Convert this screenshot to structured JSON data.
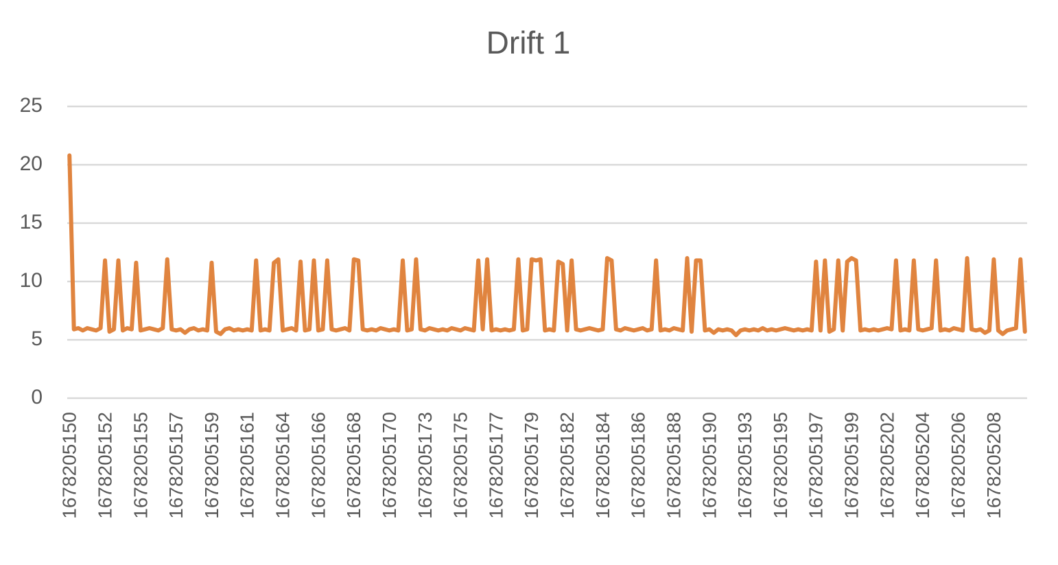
{
  "chart_data": {
    "type": "line",
    "title": "Drift 1",
    "categories": [
      "1678205150",
      null,
      null,
      null,
      null,
      null,
      null,
      null,
      "1678205152",
      null,
      null,
      null,
      null,
      null,
      null,
      null,
      "1678205155",
      null,
      null,
      null,
      null,
      null,
      null,
      null,
      "1678205157",
      null,
      null,
      null,
      null,
      null,
      null,
      null,
      "1678205159",
      null,
      null,
      null,
      null,
      null,
      null,
      null,
      "1678205161",
      null,
      null,
      null,
      null,
      null,
      null,
      null,
      "1678205164",
      null,
      null,
      null,
      null,
      null,
      null,
      null,
      "1678205166",
      null,
      null,
      null,
      null,
      null,
      null,
      null,
      "1678205168",
      null,
      null,
      null,
      null,
      null,
      null,
      null,
      "1678205170",
      null,
      null,
      null,
      null,
      null,
      null,
      null,
      "1678205173",
      null,
      null,
      null,
      null,
      null,
      null,
      null,
      "1678205175",
      null,
      null,
      null,
      null,
      null,
      null,
      null,
      "1678205177",
      null,
      null,
      null,
      null,
      null,
      null,
      null,
      "1678205179",
      null,
      null,
      null,
      null,
      null,
      null,
      null,
      "1678205182",
      null,
      null,
      null,
      null,
      null,
      null,
      null,
      "1678205184",
      null,
      null,
      null,
      null,
      null,
      null,
      null,
      "1678205186",
      null,
      null,
      null,
      null,
      null,
      null,
      null,
      "1678205188",
      null,
      null,
      null,
      null,
      null,
      null,
      null,
      "1678205190",
      null,
      null,
      null,
      null,
      null,
      null,
      null,
      "1678205193",
      null,
      null,
      null,
      null,
      null,
      null,
      null,
      "1678205195",
      null,
      null,
      null,
      null,
      null,
      null,
      null,
      "1678205197",
      null,
      null,
      null,
      null,
      null,
      null,
      null,
      "1678205199",
      null,
      null,
      null,
      null,
      null,
      null,
      null,
      "1678205202",
      null,
      null,
      null,
      null,
      null,
      null,
      null,
      "1678205204",
      null,
      null,
      null,
      null,
      null,
      null,
      null,
      "1678205206",
      null,
      null,
      null,
      null,
      null,
      null,
      null,
      "1678205208",
      null,
      null,
      null,
      null,
      null,
      null,
      null
    ],
    "values": [
      20.8,
      5.9,
      6.0,
      5.8,
      6.0,
      5.9,
      5.8,
      6.0,
      11.8,
      5.7,
      5.9,
      11.8,
      5.8,
      6.0,
      5.9,
      11.6,
      5.8,
      5.9,
      6.0,
      5.9,
      5.8,
      6.0,
      11.9,
      5.9,
      5.8,
      5.9,
      5.6,
      5.9,
      6.0,
      5.8,
      5.9,
      5.8,
      11.6,
      5.7,
      5.5,
      5.9,
      6.0,
      5.8,
      5.9,
      5.8,
      5.9,
      5.8,
      11.8,
      5.8,
      5.9,
      5.8,
      11.6,
      11.9,
      5.8,
      5.9,
      6.0,
      5.8,
      11.7,
      5.8,
      5.9,
      11.8,
      5.8,
      5.9,
      11.8,
      5.9,
      5.8,
      5.9,
      6.0,
      5.8,
      11.9,
      11.8,
      5.9,
      5.8,
      5.9,
      5.8,
      6.0,
      5.9,
      5.8,
      5.9,
      5.8,
      11.8,
      5.8,
      5.9,
      11.9,
      5.9,
      5.8,
      6.0,
      5.9,
      5.8,
      5.9,
      5.8,
      6.0,
      5.9,
      5.8,
      6.0,
      5.9,
      5.8,
      11.8,
      5.9,
      11.9,
      5.8,
      5.9,
      5.8,
      5.9,
      5.8,
      5.9,
      11.9,
      5.8,
      5.9,
      11.9,
      11.8,
      11.9,
      5.8,
      5.9,
      5.8,
      11.7,
      11.5,
      5.8,
      11.8,
      5.9,
      5.8,
      5.9,
      6.0,
      5.9,
      5.8,
      5.9,
      12.0,
      11.8,
      5.9,
      5.8,
      6.0,
      5.9,
      5.8,
      5.9,
      6.0,
      5.8,
      5.9,
      11.8,
      5.8,
      5.9,
      5.8,
      6.0,
      5.9,
      5.8,
      12.0,
      5.7,
      11.8,
      11.8,
      5.8,
      5.9,
      5.6,
      5.9,
      5.8,
      5.9,
      5.8,
      5.4,
      5.8,
      5.9,
      5.8,
      5.9,
      5.8,
      6.0,
      5.8,
      5.9,
      5.8,
      5.9,
      6.0,
      5.9,
      5.8,
      5.9,
      5.8,
      5.9,
      5.8,
      11.7,
      5.8,
      11.8,
      5.7,
      5.9,
      11.8,
      5.8,
      11.7,
      12.0,
      11.8,
      5.8,
      5.9,
      5.8,
      5.9,
      5.8,
      5.9,
      6.0,
      5.9,
      11.8,
      5.8,
      5.9,
      5.8,
      11.8,
      5.9,
      5.8,
      5.9,
      6.0,
      11.8,
      5.8,
      5.9,
      5.8,
      6.0,
      5.9,
      5.8,
      12.0,
      5.9,
      5.8,
      5.9,
      5.6,
      5.8,
      11.9,
      5.8,
      5.5,
      5.8,
      5.9,
      6.0,
      11.9,
      5.7
    ],
    "color": "#e0843f",
    "ylim": [
      0,
      25
    ],
    "yticks": [
      0,
      5,
      10,
      15,
      20,
      25
    ],
    "grid": true
  }
}
